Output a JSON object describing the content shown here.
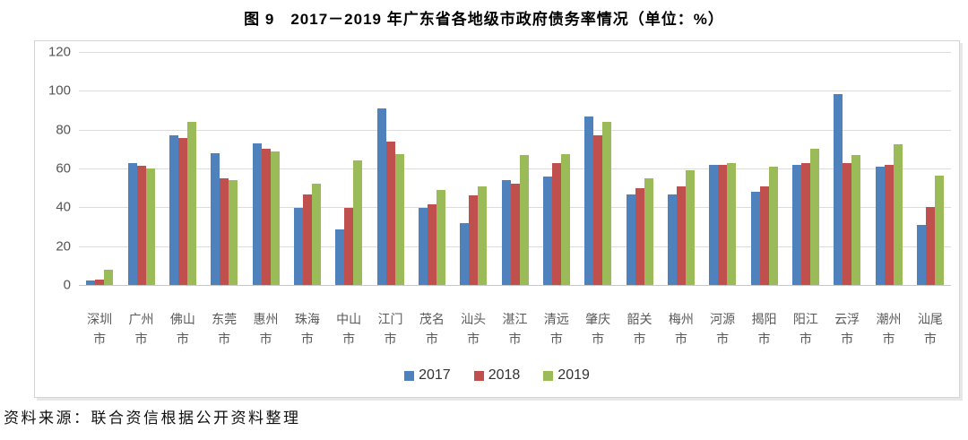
{
  "title": "图 9　2017－2019 年广东省各地级市政府债务率情况（单位：%）",
  "source": "资料来源：联合资信根据公开资料整理",
  "chart_data": {
    "type": "bar",
    "title": "图 9　2017－2019 年广东省各地级市政府债务率情况",
    "unit": "%",
    "categories": [
      "深圳市",
      "广州市",
      "佛山市",
      "东莞市",
      "惠州市",
      "珠海市",
      "中山市",
      "江门市",
      "茂名市",
      "汕头市",
      "湛江市",
      "清远市",
      "肇庆市",
      "韶关市",
      "梅州市",
      "河源市",
      "揭阳市",
      "阳江市",
      "云浮市",
      "潮州市",
      "汕尾市"
    ],
    "series": [
      {
        "name": "2017",
        "color": "#4F81BD",
        "values": [
          2.5,
          63,
          77,
          68,
          73,
          39.5,
          28.5,
          91,
          39.5,
          32,
          54,
          56,
          87,
          46.5,
          46.5,
          62,
          48,
          62,
          98.5,
          61,
          31
        ]
      },
      {
        "name": "2018",
        "color": "#C0504D",
        "values": [
          3,
          61.5,
          75.5,
          55,
          70,
          46.5,
          39.5,
          74,
          41.5,
          46,
          52,
          63,
          77,
          50,
          51,
          62,
          51,
          63,
          63,
          62,
          40
        ]
      },
      {
        "name": "2019",
        "color": "#9BBB59",
        "values": [
          8,
          60,
          84,
          54,
          69,
          52,
          64,
          67.5,
          49,
          51,
          67,
          67.5,
          84,
          55,
          59,
          63,
          61,
          70,
          67,
          72.5,
          56.5
        ]
      }
    ],
    "ylim": [
      0,
      120
    ],
    "yticks": [
      0,
      20,
      40,
      60,
      80,
      100,
      120
    ],
    "grid": true,
    "legend_position": "bottom"
  }
}
